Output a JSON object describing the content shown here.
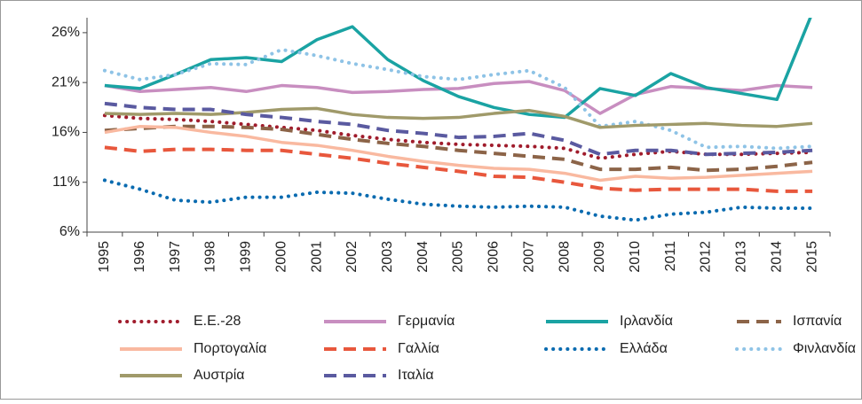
{
  "chart_data": {
    "type": "line",
    "categories": [
      "1995",
      "1996",
      "1997",
      "1998",
      "1999",
      "2000",
      "2001",
      "2002",
      "2003",
      "2004",
      "2005",
      "2006",
      "2007",
      "2008",
      "2009",
      "2010",
      "2011",
      "2012",
      "2013",
      "2014",
      "2015"
    ],
    "ylim": [
      6,
      27.5
    ],
    "yticks": [
      {
        "value": 6,
        "label": "6%"
      },
      {
        "value": 11,
        "label": "11%"
      },
      {
        "value": 16,
        "label": "16%"
      },
      {
        "value": 21,
        "label": "21%"
      },
      {
        "value": 26,
        "label": "26%"
      }
    ],
    "series": [
      {
        "name": "Ε.Ε.-28",
        "color": "#a01c2c",
        "style": "dotted",
        "values": [
          17.7,
          17.4,
          17.3,
          17.1,
          16.8,
          16.5,
          16.2,
          15.7,
          15.3,
          15.0,
          14.8,
          14.7,
          14.6,
          14.4,
          13.4,
          13.8,
          14.1,
          13.8,
          13.8,
          13.9,
          14.0
        ]
      },
      {
        "name": "Γερμανία",
        "color": "#c88ec0",
        "style": "solid",
        "values": [
          20.7,
          20.1,
          20.3,
          20.5,
          20.1,
          20.7,
          20.5,
          20.0,
          20.1,
          20.3,
          20.4,
          20.9,
          21.1,
          20.2,
          17.9,
          19.8,
          20.6,
          20.4,
          20.2,
          20.7,
          20.5
        ]
      },
      {
        "name": "Ιρλανδία",
        "color": "#1aa3a3",
        "style": "solid",
        "values": [
          20.7,
          20.4,
          21.8,
          23.3,
          23.5,
          23.1,
          25.3,
          26.6,
          23.3,
          21.2,
          19.6,
          18.5,
          17.8,
          17.5,
          20.4,
          19.7,
          21.9,
          20.5,
          19.9,
          19.3,
          28
        ]
      },
      {
        "name": "Ισπανία",
        "color": "#8c6448",
        "style": "dashed",
        "values": [
          16.2,
          16.4,
          16.6,
          16.6,
          16.5,
          16.3,
          15.8,
          15.3,
          14.9,
          14.6,
          14.2,
          13.9,
          13.6,
          13.3,
          12.3,
          12.3,
          12.5,
          12.2,
          12.3,
          12.6,
          13.0
        ]
      },
      {
        "name": "Πορτογαλία",
        "color": "#f9b9a0",
        "style": "solid",
        "values": [
          16.0,
          16.6,
          16.5,
          16.0,
          15.6,
          15.0,
          14.7,
          14.2,
          13.6,
          13.1,
          12.7,
          12.4,
          12.3,
          11.9,
          11.2,
          11.6,
          11.4,
          11.5,
          11.7,
          11.9,
          12.1
        ]
      },
      {
        "name": "Γαλλία",
        "color": "#e8573c",
        "style": "dashed",
        "values": [
          14.5,
          14.1,
          14.3,
          14.3,
          14.2,
          14.2,
          13.8,
          13.4,
          12.9,
          12.5,
          12.1,
          11.6,
          11.5,
          11.0,
          10.4,
          10.2,
          10.3,
          10.3,
          10.3,
          10.1,
          10.1
        ]
      },
      {
        "name": "Ελλάδα",
        "color": "#0a6bb0",
        "style": "dotted",
        "values": [
          11.2,
          10.3,
          9.2,
          9.0,
          9.5,
          9.5,
          10.0,
          9.9,
          9.3,
          8.8,
          8.6,
          8.5,
          8.6,
          8.5,
          7.6,
          7.2,
          7.8,
          8.0,
          8.5,
          8.4,
          8.4
        ]
      },
      {
        "name": "Φινλανδία",
        "color": "#8ec3e6",
        "style": "dotted",
        "values": [
          22.2,
          21.3,
          21.8,
          22.9,
          22.8,
          24.3,
          23.7,
          22.9,
          22.3,
          21.6,
          21.3,
          21.8,
          22.2,
          20.5,
          16.6,
          17.1,
          16.2,
          14.5,
          14.6,
          14.4,
          14.6
        ]
      },
      {
        "name": "Αυστρία",
        "color": "#a09a6a",
        "style": "solid",
        "values": [
          17.9,
          17.8,
          17.9,
          17.8,
          18.0,
          18.3,
          18.4,
          17.8,
          17.5,
          17.4,
          17.5,
          17.9,
          18.2,
          17.6,
          16.5,
          16.7,
          16.8,
          16.9,
          16.7,
          16.6,
          16.9
        ]
      },
      {
        "name": "Ιταλία",
        "color": "#5a5aa0",
        "style": "dashed",
        "values": [
          18.9,
          18.5,
          18.3,
          18.3,
          17.8,
          17.5,
          17.1,
          16.8,
          16.2,
          15.9,
          15.5,
          15.6,
          15.9,
          15.2,
          13.8,
          14.2,
          14.2,
          13.8,
          13.9,
          14.0,
          14.2
        ]
      }
    ]
  }
}
